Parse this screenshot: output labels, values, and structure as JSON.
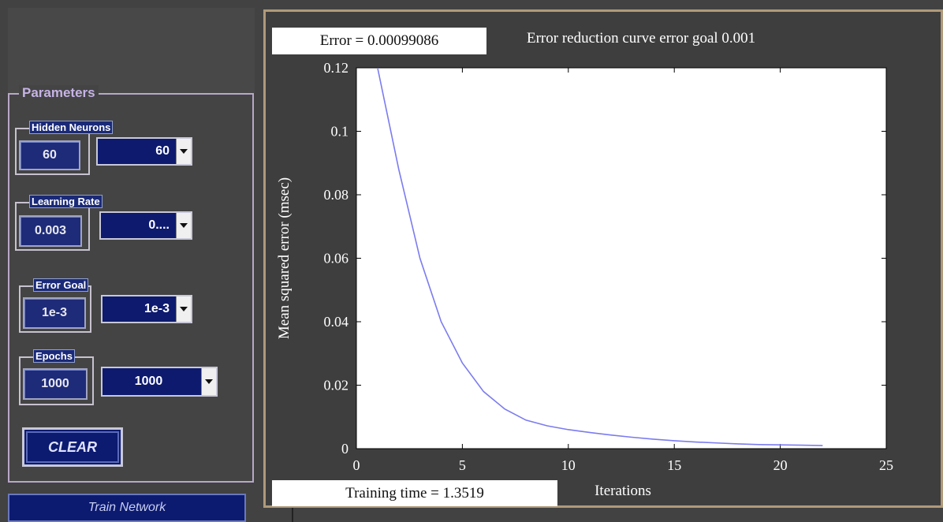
{
  "parameters": {
    "title": "Parameters",
    "hidden_neurons": {
      "label": "Hidden Neurons",
      "value": "60",
      "selected": "60"
    },
    "learning_rate": {
      "label": "Learning Rate",
      "value": "0.003",
      "selected": "0...."
    },
    "error_goal": {
      "label": "Error Goal",
      "value": "1e-3",
      "selected": "1e-3"
    },
    "epochs": {
      "label": "Epochs",
      "value": "1000",
      "selected": "1000"
    },
    "clear_label": "CLEAR"
  },
  "train_label": "Train Network",
  "status": {
    "error_text": "Error = 0.00099086",
    "training_time_text": "Training time = 1.3519"
  },
  "chart_data": {
    "type": "line",
    "title": "Error reduction curve error goal 0.001",
    "xlabel": "Iterations",
    "ylabel": "Mean squared error (msec)",
    "xlim": [
      0,
      25
    ],
    "ylim": [
      0,
      0.12
    ],
    "xticks": [
      0,
      5,
      10,
      15,
      20,
      25
    ],
    "yticks": [
      0,
      0.02,
      0.04,
      0.06,
      0.08,
      0.1,
      0.12
    ],
    "ytick_labels": [
      "0",
      "0.02",
      "0.04",
      "0.06",
      "0.08",
      "0.1",
      "0.12"
    ],
    "line_color": "#7b7bf0",
    "grid": false,
    "series": [
      {
        "x": [
          1,
          2,
          3,
          4,
          5,
          6,
          7,
          8,
          9,
          10,
          11,
          12,
          13,
          14,
          15,
          16,
          17,
          18,
          19,
          20,
          21,
          22
        ],
        "y": [
          0.12,
          0.088,
          0.06,
          0.04,
          0.027,
          0.018,
          0.0125,
          0.009,
          0.0072,
          0.006,
          0.0051,
          0.0043,
          0.0036,
          0.003,
          0.0025,
          0.0021,
          0.0018,
          0.0015,
          0.0013,
          0.0012,
          0.0011,
          0.00099
        ]
      }
    ]
  },
  "colors": {
    "panel_bg": "#424242",
    "button_blue": "#0c1a70",
    "plot_border": "#b09a7a"
  }
}
